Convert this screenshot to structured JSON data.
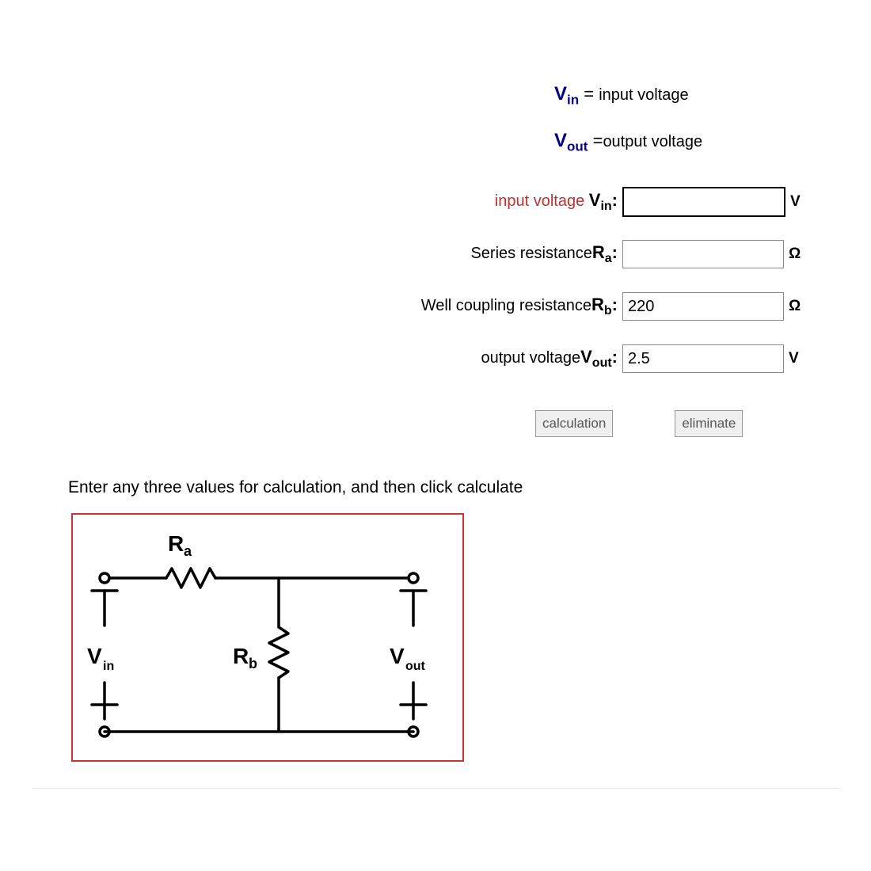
{
  "legend": {
    "vin_sym": "V",
    "vin_sub": "in",
    "vin_eq": " = ",
    "vin_text": "input voltage",
    "vout_sym": "V",
    "vout_sub": "out",
    "vout_eq": " =",
    "vout_text": "output voltage"
  },
  "form": {
    "rows": [
      {
        "label_pre": "input voltage ",
        "sym": "V",
        "sub": "in",
        "colon": ":",
        "value": "",
        "unit": "V",
        "highlight": true,
        "label_color": "#c03030",
        "name": "vin-input"
      },
      {
        "label_pre": "Series resistance",
        "sym": "R",
        "sub": "a",
        "colon": ":",
        "value": "",
        "unit": "Ω",
        "highlight": false,
        "label_color": "#000000",
        "name": "ra-input"
      },
      {
        "label_pre": "Well coupling resistance",
        "sym": "R",
        "sub": "b",
        "colon": ":",
        "value": "220",
        "unit": "Ω",
        "highlight": false,
        "label_color": "#000000",
        "name": "rb-input"
      },
      {
        "label_pre": "output voltage",
        "sym": "V",
        "sub": "out",
        "colon": ":",
        "value": "2.5",
        "unit": "V",
        "highlight": false,
        "label_color": "#000000",
        "name": "vout-input"
      }
    ]
  },
  "buttons": {
    "calc": "calculation",
    "clear": "eliminate"
  },
  "instruction": "Enter any three values for calculation, and then click calculate",
  "diagram": {
    "border_color": "#cc3333",
    "stroke": "#000000",
    "stroke_width": 3,
    "labels": {
      "Ra": "R",
      "Ra_sub": "a",
      "Rb": "R",
      "Rb_sub": "b",
      "Vin": "V",
      "Vin_sub": "in",
      "Vout": "V",
      "Vout_sub": "out"
    }
  },
  "colors": {
    "legend_blue": "#000080",
    "input_label_red": "#c03030",
    "button_bg": "#efefef",
    "button_border": "#999999"
  }
}
